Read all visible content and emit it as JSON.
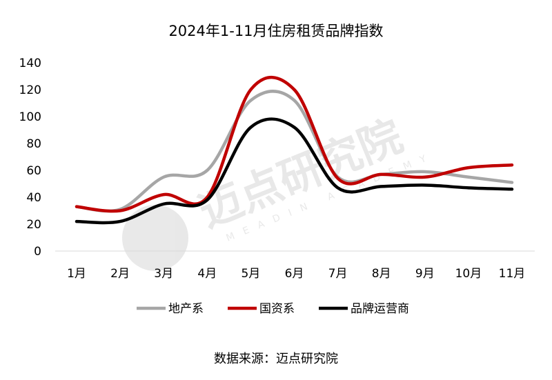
{
  "chart_data": {
    "type": "line",
    "title": "2024年1-11月住房租赁品牌指数",
    "categories": [
      "1月",
      "2月",
      "3月",
      "4月",
      "5月",
      "6月",
      "7月",
      "8月",
      "9月",
      "10月",
      "11月"
    ],
    "yticks": [
      0,
      20,
      40,
      60,
      80,
      100,
      120,
      140
    ],
    "ylim": [
      0,
      140
    ],
    "grid": false,
    "legend_position": "bottom",
    "series": [
      {
        "name": "地产系",
        "color": "#a6a6a6",
        "values": [
          33,
          31,
          55,
          60,
          112,
          112,
          55,
          57,
          59,
          55,
          51
        ]
      },
      {
        "name": "国资系",
        "color": "#c00000",
        "values": [
          33,
          30,
          42,
          40,
          120,
          120,
          54,
          57,
          55,
          62,
          64
        ]
      },
      {
        "name": "品牌运营商",
        "color": "#000000",
        "values": [
          22,
          22,
          35,
          38,
          92,
          92,
          47,
          48,
          49,
          47,
          46
        ]
      }
    ],
    "source": "数据来源：迈点研究院"
  },
  "watermark": {
    "text": "迈点研究院",
    "sub": "MEADIN ACADEMY"
  }
}
